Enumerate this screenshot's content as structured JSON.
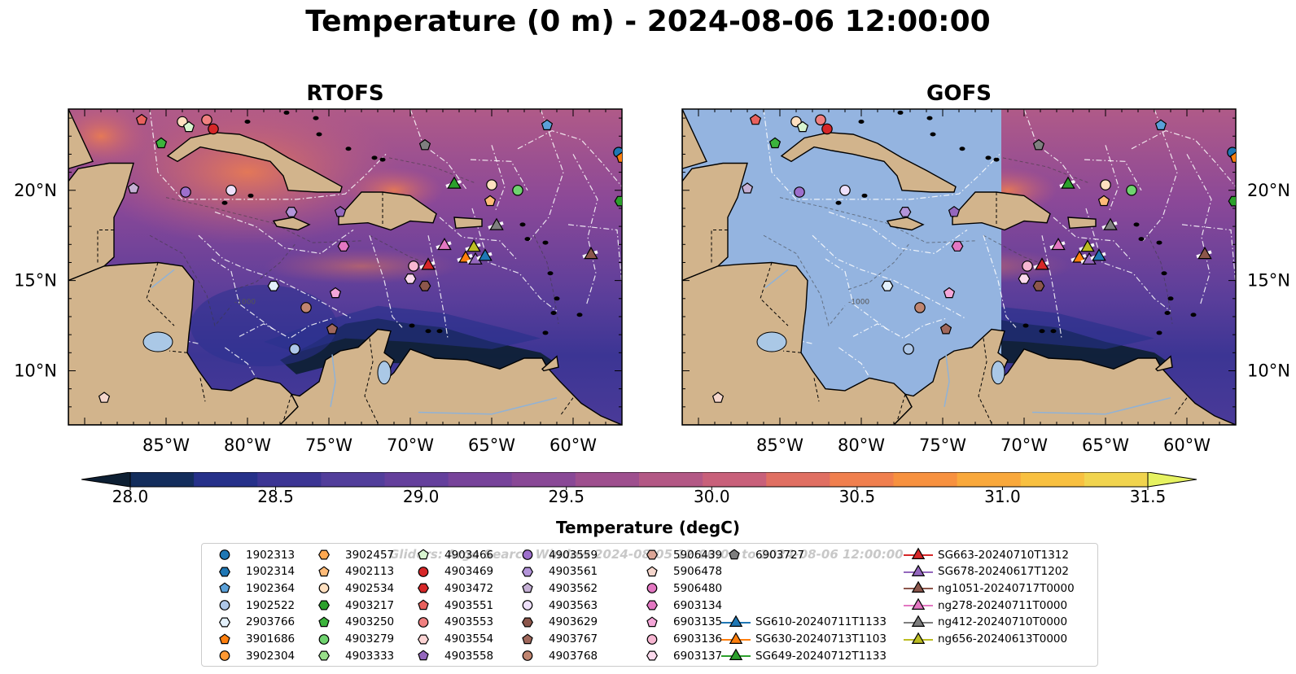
{
  "title": "Temperature (0 m) - 2024-08-06 12:00:00",
  "panels": [
    {
      "id": "rtofs",
      "title": "RTOFS"
    },
    {
      "id": "gofs",
      "title": "GOFS"
    }
  ],
  "map": {
    "lon_range": [
      -91,
      -57
    ],
    "lat_range": [
      7,
      24.5
    ],
    "lon_ticks": [
      "85°W",
      "80°W",
      "75°W",
      "70°W",
      "65°W",
      "60°W"
    ],
    "lat_ticks": [
      "20°N",
      "15°N",
      "10°N"
    ],
    "contour_label": "-1000",
    "gofs_missing_data_color": "#94b4e0",
    "land_color": "#d2b48c"
  },
  "colorbar": {
    "label": "Temperature (degC)",
    "ticks": [
      "28.0",
      "28.5",
      "29.0",
      "29.5",
      "30.0",
      "30.5",
      "31.0",
      "31.5"
    ],
    "range": [
      28.0,
      31.5
    ],
    "colors": [
      "#0d1f33",
      "#132d5c",
      "#26318a",
      "#3c3594",
      "#523e9b",
      "#643f9c",
      "#77439a",
      "#894896",
      "#9e4f8e",
      "#b35885",
      "#c8607a",
      "#e06f62",
      "#f07f4e",
      "#f7913f",
      "#f9a83b",
      "#f8c040",
      "#f1d44e",
      "#e6f261"
    ]
  },
  "legend": {
    "watermark": "Gliders: Argo Search Window 2024-08-05 12:00:00 to 2024-08-06 12:00:00",
    "floats": [
      {
        "id": "1902313",
        "marker": "circle",
        "color": "#1f77b4"
      },
      {
        "id": "1902314",
        "marker": "hexagon",
        "color": "#1f77b4"
      },
      {
        "id": "1902364",
        "marker": "pentagon",
        "color": "#5aa0d8"
      },
      {
        "id": "1902522",
        "marker": "circle",
        "color": "#aec7e8"
      },
      {
        "id": "2903766",
        "marker": "hexagon",
        "color": "#e3f0fb"
      },
      {
        "id": "3901686",
        "marker": "pentagon",
        "color": "#ff7f0e"
      },
      {
        "id": "3902304",
        "marker": "circle",
        "color": "#ff9933"
      },
      {
        "id": "3902457",
        "marker": "hexagon",
        "color": "#ffa850"
      },
      {
        "id": "4902113",
        "marker": "pentagon",
        "color": "#ffbb78"
      },
      {
        "id": "4902534",
        "marker": "circle",
        "color": "#ffe0c0"
      },
      {
        "id": "4903217",
        "marker": "hexagon",
        "color": "#2ca02c"
      },
      {
        "id": "4903250",
        "marker": "pentagon",
        "color": "#3cb43c"
      },
      {
        "id": "4903279",
        "marker": "circle",
        "color": "#6fd36f"
      },
      {
        "id": "4903333",
        "marker": "hexagon",
        "color": "#98df8a"
      },
      {
        "id": "4903466",
        "marker": "pentagon",
        "color": "#d8f5d0"
      },
      {
        "id": "4903469",
        "marker": "circle",
        "color": "#d62728"
      },
      {
        "id": "4903472",
        "marker": "hexagon",
        "color": "#d62728"
      },
      {
        "id": "4903551",
        "marker": "pentagon",
        "color": "#e8615d"
      },
      {
        "id": "4903553",
        "marker": "circle",
        "color": "#f08080"
      },
      {
        "id": "4903554",
        "marker": "hexagon",
        "color": "#fcd4d4"
      },
      {
        "id": "4903558",
        "marker": "pentagon",
        "color": "#9467bd"
      },
      {
        "id": "4903559",
        "marker": "circle",
        "color": "#9d6fcc"
      },
      {
        "id": "4903561",
        "marker": "hexagon",
        "color": "#b394d9"
      },
      {
        "id": "4903562",
        "marker": "pentagon",
        "color": "#c5b0d5"
      },
      {
        "id": "4903563",
        "marker": "circle",
        "color": "#eee0fa"
      },
      {
        "id": "4903629",
        "marker": "hexagon",
        "color": "#8c564b"
      },
      {
        "id": "4903767",
        "marker": "pentagon",
        "color": "#a0685c"
      },
      {
        "id": "4903768",
        "marker": "circle",
        "color": "#c08570"
      },
      {
        "id": "5906439",
        "marker": "hexagon",
        "color": "#dba596"
      },
      {
        "id": "5906478",
        "marker": "pentagon",
        "color": "#f5d6cc"
      },
      {
        "id": "5906480",
        "marker": "circle",
        "color": "#e377c2"
      },
      {
        "id": "6903134",
        "marker": "hexagon",
        "color": "#e377c2"
      },
      {
        "id": "6903135",
        "marker": "pentagon",
        "color": "#f4a6d8"
      },
      {
        "id": "6903136",
        "marker": "circle",
        "color": "#f7b6d2"
      },
      {
        "id": "6903137",
        "marker": "hexagon",
        "color": "#fbd9ec"
      },
      {
        "id": "6903727",
        "marker": "pentagon",
        "color": "#7f7f7f"
      }
    ],
    "gliders": [
      {
        "id": "SG610-20240711T1133",
        "color": "#1f77b4"
      },
      {
        "id": "SG630-20240713T1103",
        "color": "#ff7f0e"
      },
      {
        "id": "SG649-20240712T1133",
        "color": "#2ca02c"
      },
      {
        "id": "SG663-20240710T1312",
        "color": "#d62728"
      },
      {
        "id": "SG678-20240617T1202",
        "color": "#9467bd"
      },
      {
        "id": "ng1051-20240717T0000",
        "color": "#8c564b"
      },
      {
        "id": "ng278-20240711T0000",
        "color": "#e377c2"
      },
      {
        "id": "ng412-20240710T0000",
        "color": "#7f7f7f"
      },
      {
        "id": "ng656-20240613T0000",
        "color": "#bcbd22"
      }
    ]
  },
  "map_markers": [
    {
      "id": "4903551",
      "lon": -86.5,
      "lat": 23.9
    },
    {
      "id": "4902534",
      "lon": -84.0,
      "lat": 23.8
    },
    {
      "id": "4903466",
      "lon": -83.6,
      "lat": 23.5
    },
    {
      "id": "4903553",
      "lon": -82.5,
      "lat": 23.9
    },
    {
      "id": "4903469",
      "lon": -82.1,
      "lat": 23.4
    },
    {
      "id": "4903250",
      "lon": -85.3,
      "lat": 22.6
    },
    {
      "id": "4903562",
      "lon": -87.0,
      "lat": 20.1
    },
    {
      "id": "4903559",
      "lon": -83.8,
      "lat": 19.9
    },
    {
      "id": "4903563",
      "lon": -81.0,
      "lat": 20.0
    },
    {
      "id": "4903561",
      "lon": -77.3,
      "lat": 18.8
    },
    {
      "id": "4903558",
      "lon": -74.3,
      "lat": 18.8
    },
    {
      "id": "2903766",
      "lon": -78.4,
      "lat": 14.7
    },
    {
      "id": "4903768",
      "lon": -76.4,
      "lat": 13.5
    },
    {
      "id": "4903767",
      "lon": -74.8,
      "lat": 12.3
    },
    {
      "id": "1902522",
      "lon": -77.1,
      "lat": 11.2
    },
    {
      "id": "6903135",
      "lon": -74.6,
      "lat": 14.3
    },
    {
      "id": "6903134",
      "lon": -74.1,
      "lat": 16.9
    },
    {
      "id": "6903136",
      "lon": -69.8,
      "lat": 15.8
    },
    {
      "id": "6903137",
      "lon": -70.0,
      "lat": 15.1
    },
    {
      "id": "4903629",
      "lon": -69.1,
      "lat": 14.7
    },
    {
      "id": "6903727",
      "lon": -69.1,
      "lat": 22.5
    },
    {
      "id": "4902534",
      "lon": -65.0,
      "lat": 20.3
    },
    {
      "id": "4902113",
      "lon": -65.1,
      "lat": 19.4
    },
    {
      "id": "4903279",
      "lon": -63.4,
      "lat": 20.0
    },
    {
      "id": "1902364",
      "lon": -61.6,
      "lat": 23.6
    },
    {
      "id": "1902313",
      "lon": -57.2,
      "lat": 22.1
    },
    {
      "id": "3901686",
      "lon": -57.0,
      "lat": 21.8
    },
    {
      "id": "4903217",
      "lon": -57.1,
      "lat": 19.4
    },
    {
      "id": "5906478",
      "lon": -88.8,
      "lat": 8.5
    }
  ],
  "glider_markers": [
    {
      "id": "SG649-20240712T1133",
      "lon": -67.3,
      "lat": 20.4
    },
    {
      "id": "ng412-20240710T0000",
      "lon": -64.7,
      "lat": 18.1
    },
    {
      "id": "ng278-20240711T0000",
      "lon": -67.9,
      "lat": 17.0
    },
    {
      "id": "ng656-20240613T0000",
      "lon": -66.1,
      "lat": 16.9
    },
    {
      "id": "SG663-20240710T1312",
      "lon": -68.9,
      "lat": 15.9
    },
    {
      "id": "SG630-20240713T1103",
      "lon": -66.6,
      "lat": 16.3
    },
    {
      "id": "SG678-20240617T1202",
      "lon": -66.0,
      "lat": 16.2
    },
    {
      "id": "SG610-20240711T1133",
      "lon": -65.4,
      "lat": 16.4
    },
    {
      "id": "ng1051-20240717T0000",
      "lon": -58.9,
      "lat": 16.5
    }
  ]
}
